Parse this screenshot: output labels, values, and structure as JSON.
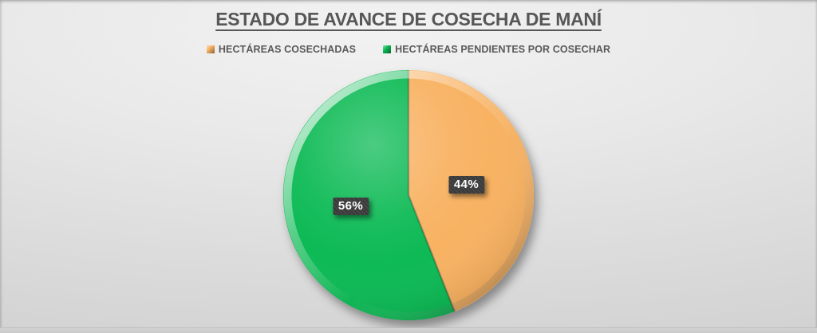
{
  "chart_data": {
    "type": "pie",
    "title": "ESTADO DE AVANCE DE COSECHA DE MANÍ",
    "legend_position": "top",
    "start_angle_deg": 0,
    "direction": "clockwise",
    "slices": [
      {
        "label": "HECTÁREAS COSECHADAS",
        "value": 44,
        "display": "44%",
        "color": "#F8B262"
      },
      {
        "label": "HECTÁREAS PENDIENTES POR COSECHAR",
        "value": 56,
        "display": "56%",
        "color": "#0CBA55"
      }
    ],
    "data_label_style": {
      "bg": "#3E3E3E",
      "text_color": "#FFFFFF"
    },
    "title_color": "#575757",
    "legend_text_color": "#595959"
  }
}
